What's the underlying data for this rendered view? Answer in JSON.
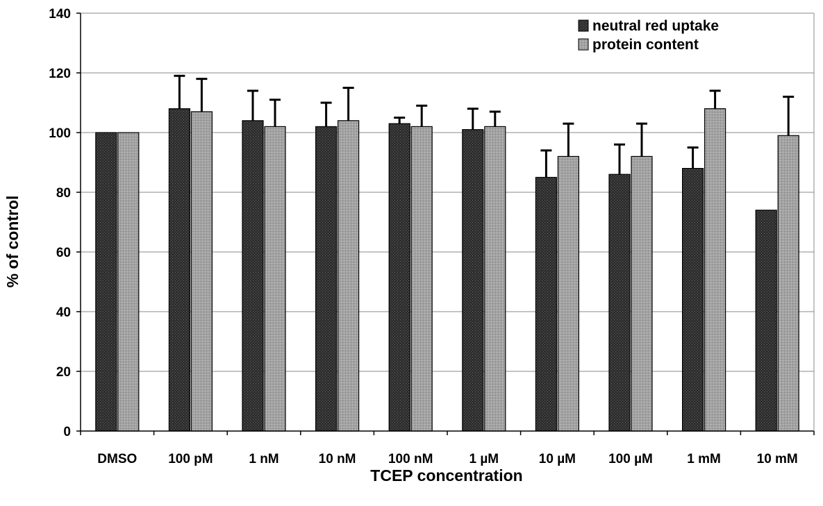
{
  "chart_data": {
    "type": "bar",
    "title": "",
    "xlabel": "TCEP concentration",
    "ylabel": "% of control",
    "ylim": [
      0,
      140
    ],
    "yticks": [
      0,
      20,
      40,
      60,
      80,
      100,
      120,
      140
    ],
    "grid": true,
    "legend_position": "top-right",
    "categories": [
      "DMSO",
      "100 pM",
      "1 nM",
      "10 nM",
      "100 nM",
      "1 µM",
      "10 µM",
      "100 µM",
      "1 mM",
      "10 mM"
    ],
    "series": [
      {
        "name": "neutral red uptake",
        "color": "#2b2b2b",
        "values": [
          100,
          108,
          104,
          102,
          103,
          101,
          85,
          86,
          88,
          74
        ],
        "error": [
          0,
          11,
          10,
          8,
          2,
          7,
          9,
          10,
          7,
          0
        ]
      },
      {
        "name": "protein content",
        "color": "#9c9c9c",
        "values": [
          100,
          107,
          102,
          104,
          102,
          102,
          92,
          92,
          108,
          99
        ],
        "error": [
          0,
          11,
          9,
          11,
          7,
          5,
          11,
          11,
          6,
          13
        ]
      }
    ]
  }
}
